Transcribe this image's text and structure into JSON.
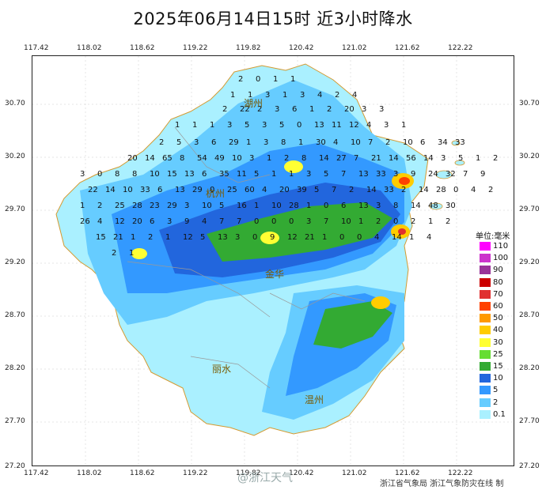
{
  "title": "2025年06月14日15时  近3小时降水",
  "lon_ticks": [
    "117.42",
    "118.02",
    "118.62",
    "119.22",
    "119.82",
    "120.42",
    "121.02",
    "121.62",
    "122.22"
  ],
  "lat_ticks": [
    "30.70",
    "30.20",
    "29.70",
    "29.20",
    "28.70",
    "28.20",
    "27.70",
    "27.20"
  ],
  "legend": {
    "title": "单位:毫米",
    "items": [
      {
        "label": "110",
        "color": "#ff00ff"
      },
      {
        "label": "100",
        "color": "#cc33cc"
      },
      {
        "label": "90",
        "color": "#993399"
      },
      {
        "label": "80",
        "color": "#cc0000"
      },
      {
        "label": "70",
        "color": "#e03030"
      },
      {
        "label": "60",
        "color": "#ff4000"
      },
      {
        "label": "50",
        "color": "#ff9900"
      },
      {
        "label": "40",
        "color": "#ffcc00"
      },
      {
        "label": "30",
        "color": "#ffff33"
      },
      {
        "label": "25",
        "color": "#66dd33"
      },
      {
        "label": "15",
        "color": "#33aa33"
      },
      {
        "label": "10",
        "color": "#2266dd"
      },
      {
        "label": "5",
        "color": "#3399ff"
      },
      {
        "label": "2",
        "color": "#66ccff"
      },
      {
        "label": "0.1",
        "color": "#aaf0ff"
      }
    ]
  },
  "cities": [
    "湖州",
    "杭州",
    "金华",
    "丽水",
    "温州"
  ],
  "watermark": "@浙江天气",
  "footer": "浙江省气象局   浙江气象防灾在线 制",
  "station_values": [
    "2",
    "0",
    "1",
    "1",
    "1",
    "1",
    "3",
    "1",
    "3",
    "4",
    "2",
    "4",
    "2",
    "22",
    "2",
    "3",
    "6",
    "1",
    "2",
    "20",
    "3",
    "3",
    "1",
    "1",
    "1",
    "3",
    "5",
    "3",
    "5",
    "0",
    "13",
    "11",
    "12",
    "4",
    "3",
    "1",
    "2",
    "5",
    "3",
    "6",
    "29",
    "1",
    "3",
    "8",
    "1",
    "30",
    "4",
    "10",
    "7",
    "2",
    "10",
    "6",
    "34",
    "33",
    "20",
    "14",
    "65",
    "8",
    "54",
    "49",
    "10",
    "3",
    "1",
    "2",
    "8",
    "14",
    "27",
    "7",
    "21",
    "14",
    "56",
    "14",
    "3",
    "5",
    "1",
    "2",
    "3",
    "0",
    "8",
    "8",
    "10",
    "15",
    "13",
    "6",
    "35",
    "11",
    "5",
    "1",
    "1",
    "3",
    "5",
    "7",
    "13",
    "33",
    "3",
    "9",
    "24",
    "32",
    "7",
    "9",
    "22",
    "14",
    "10",
    "33",
    "6",
    "13",
    "29",
    "0",
    "25",
    "60",
    "4",
    "20",
    "39",
    "5",
    "7",
    "2",
    "14",
    "33",
    "2",
    "14",
    "28",
    "0",
    "4",
    "2",
    "1",
    "2",
    "25",
    "28",
    "23",
    "29",
    "3",
    "10",
    "5",
    "16",
    "1",
    "10",
    "28",
    "1",
    "0",
    "6",
    "13",
    "3",
    "8",
    "14",
    "48",
    "30",
    "26",
    "4",
    "12",
    "20",
    "6",
    "3",
    "9",
    "4",
    "7",
    "7",
    "0",
    "0",
    "0",
    "3",
    "7",
    "10",
    "1",
    "2",
    "0",
    "2",
    "1",
    "2",
    "15",
    "21",
    "1",
    "2",
    "1",
    "12",
    "5",
    "13",
    "3",
    "0",
    "9",
    "12",
    "21",
    "1",
    "0",
    "0",
    "4",
    "14",
    "1",
    "4",
    "2",
    "1"
  ]
}
